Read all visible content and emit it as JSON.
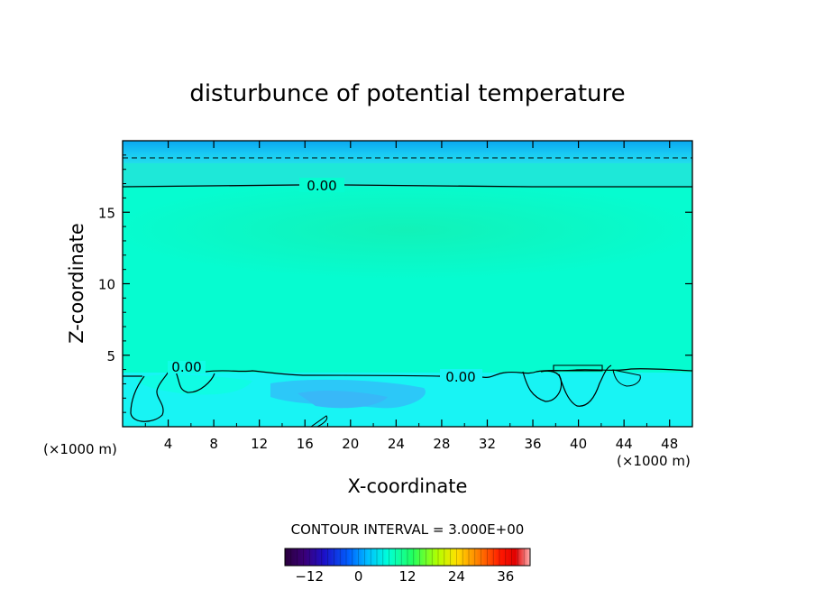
{
  "chart_data": {
    "type": "heatmap",
    "title": "disturbunce of potential temperature",
    "xlabel": "X-coordinate",
    "ylabel": "Z-coordinate",
    "x_unit": "(×1000 m)",
    "x_unit_right": "(×1000 m)",
    "xlim": [
      0,
      50
    ],
    "ylim": [
      0,
      20
    ],
    "x_ticks": [
      4,
      8,
      12,
      16,
      20,
      24,
      28,
      32,
      36,
      40,
      44,
      48
    ],
    "y_ticks": [
      5,
      10,
      15
    ],
    "contour_interval_text": "CONTOUR INTERVAL = 3.000E+00",
    "contour_labels": [
      "0.00",
      "0.00",
      "0.00"
    ],
    "colorbar": {
      "range": [
        -18,
        42
      ],
      "ticks": [
        -12,
        0,
        12,
        24,
        36
      ],
      "colors": [
        "#2a003c",
        "#3a0078",
        "#2200b4",
        "#0018e6",
        "#0060ff",
        "#00a8ff",
        "#00e0ff",
        "#00ffd0",
        "#00ff80",
        "#40ff20",
        "#a0ff00",
        "#e8ff00",
        "#ffd000",
        "#ff9000",
        "#ff4000",
        "#e00000",
        "#ff8080",
        "#ffc0c0"
      ]
    },
    "field_bands": [
      {
        "z": [
          18,
          20
        ],
        "value": -6
      },
      {
        "z": [
          17,
          18
        ],
        "value": -3
      },
      {
        "z": [
          4,
          17
        ],
        "value": 1
      },
      {
        "z": [
          0,
          4
        ],
        "value": -1
      }
    ]
  }
}
